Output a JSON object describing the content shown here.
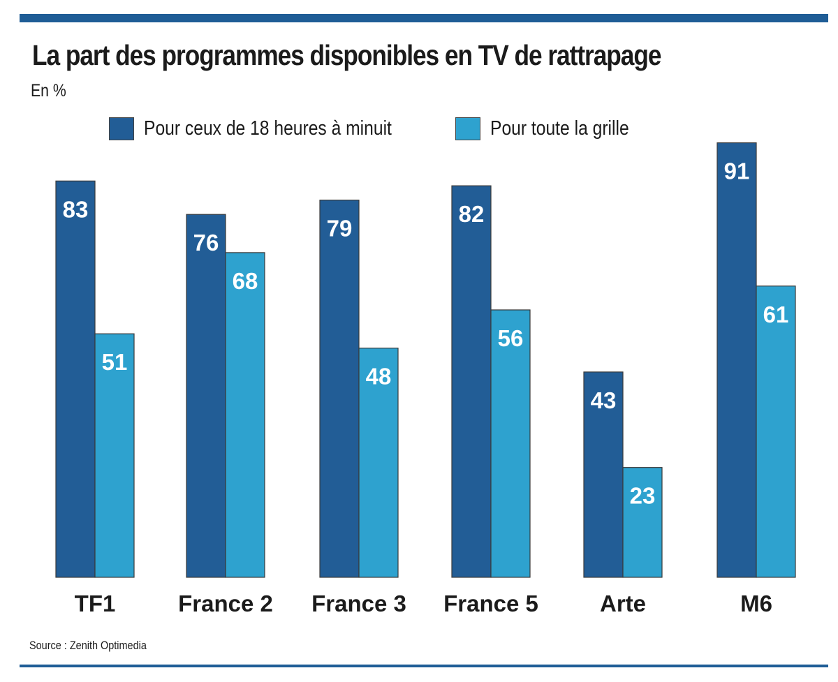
{
  "chart_data": {
    "type": "bar",
    "title": "La part des programmes disponibles en TV de rattrapage",
    "subtitle": "En %",
    "xlabel": "",
    "ylabel": "",
    "ylim": [
      0,
      100
    ],
    "grid": false,
    "legend_position": "top",
    "categories": [
      "TF1",
      "France 2",
      "France 3",
      "France 5",
      "Arte",
      "M6"
    ],
    "series": [
      {
        "name": "Pour ceux de 18 heures à minuit",
        "color": "#225d96",
        "values": [
          83,
          76,
          79,
          82,
          43,
          91
        ]
      },
      {
        "name": "Pour toute la grille",
        "color": "#2ea2cf",
        "values": [
          51,
          68,
          48,
          56,
          23,
          61
        ]
      }
    ],
    "source": "Source : Zenith Optimedia"
  }
}
